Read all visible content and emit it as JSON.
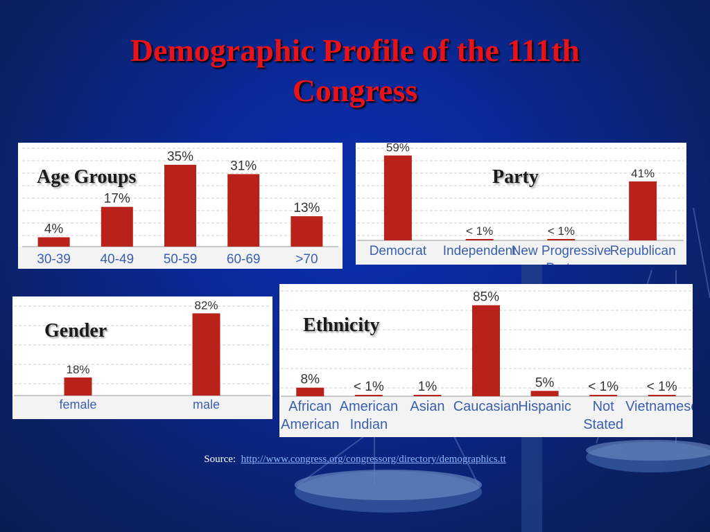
{
  "slide": {
    "title_line1": "Demographic Profile of the 111th",
    "title_line2": "Congress",
    "source_label": "Source:",
    "source_url": "http://www.congress.org/congressorg/directory/demographics.tt"
  },
  "colors": {
    "bar": "#b8221a",
    "axis_text": "#3a5fb0",
    "value_text": "#333333",
    "title": "#e8121a"
  },
  "chart_data": [
    {
      "id": "age",
      "type": "bar",
      "title": "Age Groups",
      "categories": [
        "30-39",
        "40-49",
        "50-59",
        "60-69",
        ">70"
      ],
      "value_labels": [
        "4%",
        "17%",
        "35%",
        "31%",
        "13%"
      ],
      "values": [
        4,
        17,
        35,
        31,
        13
      ],
      "ylim": [
        0,
        40
      ],
      "grid": true
    },
    {
      "id": "party",
      "type": "bar",
      "title": "Party",
      "categories": [
        "Democrat",
        "Independent",
        "New Progressive Party",
        "Republican"
      ],
      "value_labels": [
        "59%",
        "< 1%",
        "< 1%",
        "41%"
      ],
      "values": [
        59,
        0.5,
        0.5,
        41
      ],
      "ylim": [
        0,
        65
      ],
      "grid": true
    },
    {
      "id": "gender",
      "type": "bar",
      "title": "Gender",
      "categories": [
        "female",
        "male"
      ],
      "value_labels": [
        "18%",
        "82%"
      ],
      "values": [
        18,
        82
      ],
      "ylim": [
        0,
        85
      ],
      "grid": true
    },
    {
      "id": "ethnicity",
      "type": "bar",
      "title": "Ethnicity",
      "categories": [
        "African American",
        "American Indian",
        "Asian",
        "Caucasian",
        "Hispanic",
        "Not Stated",
        "Vietnamese"
      ],
      "value_labels": [
        "8%",
        "< 1%",
        "1%",
        "85%",
        "5%",
        "< 1%",
        "< 1%"
      ],
      "values": [
        8,
        0.5,
        1,
        85,
        5,
        0.5,
        0.5
      ],
      "ylim": [
        0,
        88
      ],
      "grid": true
    }
  ]
}
